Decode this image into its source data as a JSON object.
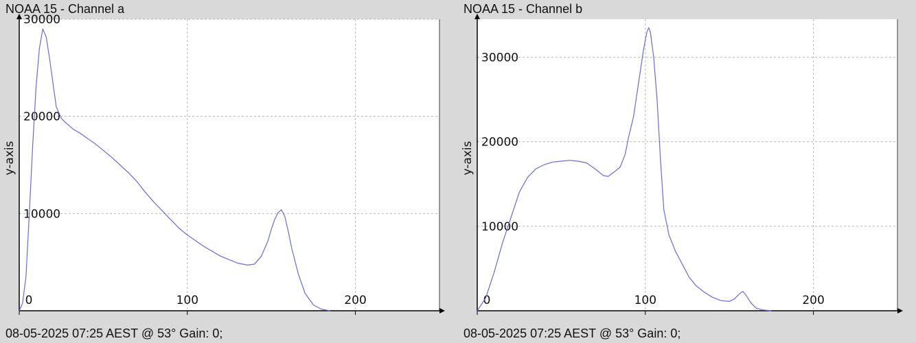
{
  "chart_data": [
    {
      "type": "line",
      "title": "NOAA 15 - Channel a",
      "footer": "08-05-2025 07:25 AEST @ 53° Gain: 0;",
      "ylabel": "y-axis",
      "xlabel": "",
      "xlim": [
        0,
        250
      ],
      "ylim": [
        0,
        30000
      ],
      "xticks": [
        0,
        100,
        200
      ],
      "yticks": [
        10000,
        20000,
        30000
      ],
      "grid": true,
      "line_color": "#6a6ad8",
      "x": [
        0,
        2,
        4,
        6,
        8,
        10,
        12,
        14,
        16,
        18,
        20,
        22,
        25,
        28,
        32,
        36,
        40,
        45,
        50,
        55,
        60,
        65,
        70,
        75,
        80,
        85,
        90,
        95,
        100,
        110,
        120,
        130,
        136,
        140,
        144,
        148,
        150,
        152,
        154,
        156,
        158,
        160,
        162,
        166,
        170,
        175,
        180,
        185
      ],
      "y": [
        0,
        800,
        3500,
        10000,
        17000,
        23000,
        27000,
        29000,
        28200,
        26000,
        23500,
        21000,
        19800,
        19300,
        18700,
        18300,
        17800,
        17200,
        16500,
        15800,
        15000,
        14200,
        13300,
        12200,
        11200,
        10300,
        9400,
        8500,
        7800,
        6600,
        5600,
        4900,
        4700,
        4800,
        5600,
        7200,
        8400,
        9400,
        10100,
        10400,
        9700,
        8200,
        6500,
        3800,
        1800,
        600,
        150,
        0
      ]
    },
    {
      "type": "line",
      "title": "NOAA 15 - Channel b",
      "footer": "08-05-2025 07:25 AEST @ 53° Gain: 0;",
      "ylabel": "y-axis",
      "xlabel": "",
      "xlim": [
        0,
        250
      ],
      "ylim": [
        0,
        34500
      ],
      "xticks": [
        0,
        100,
        200
      ],
      "yticks": [
        10000,
        20000,
        30000
      ],
      "grid": true,
      "line_color": "#6a6ad8",
      "x": [
        0,
        5,
        10,
        15,
        20,
        25,
        30,
        35,
        40,
        45,
        50,
        55,
        60,
        65,
        70,
        75,
        78,
        80,
        82,
        85,
        88,
        90,
        93,
        96,
        99,
        101,
        102,
        103,
        105,
        107,
        109,
        111,
        114,
        118,
        122,
        126,
        130,
        135,
        140,
        145,
        150,
        153,
        156,
        158,
        160,
        163,
        166,
        170,
        175
      ],
      "y": [
        0,
        1500,
        4500,
        8000,
        11000,
        14000,
        15800,
        16800,
        17300,
        17600,
        17700,
        17800,
        17700,
        17500,
        16800,
        16000,
        15900,
        16200,
        16500,
        17000,
        18500,
        20500,
        23000,
        27000,
        31000,
        33000,
        33500,
        33000,
        30000,
        25000,
        18000,
        12000,
        9000,
        7000,
        5500,
        4000,
        3000,
        2200,
        1600,
        1200,
        1100,
        1400,
        2000,
        2300,
        1800,
        900,
        300,
        100,
        0
      ]
    }
  ]
}
